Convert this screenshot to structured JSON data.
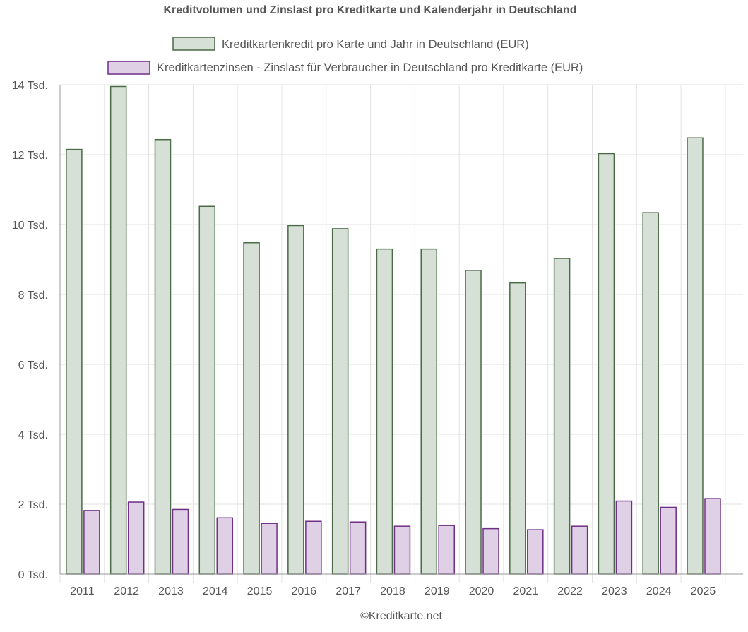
{
  "chart_data": {
    "type": "bar",
    "title": "Kreditvolumen und Zinslast pro Kreditkarte und Kalenderjahr in Deutschland",
    "categories": [
      "2011",
      "2012",
      "2013",
      "2014",
      "2015",
      "2016",
      "2017",
      "2018",
      "2019",
      "2020",
      "2021",
      "2022",
      "2023",
      "2024",
      "2025"
    ],
    "series": [
      {
        "name": "Kreditkartenkredit pro Karte und Jahr in Deutschland (EUR)",
        "fill": "#d6e0d6",
        "stroke": "#4a6b45",
        "values": [
          12150,
          13950,
          12430,
          10520,
          9480,
          9970,
          9880,
          9300,
          9300,
          8690,
          8330,
          9030,
          12030,
          10340,
          12480
        ]
      },
      {
        "name": "Kreditkartenzinsen - Zinslast für Verbraucher in Deutschland pro Kreditkarte (EUR)",
        "fill": "#e0d0e6",
        "stroke": "#6f2f86",
        "values": [
          1820,
          2060,
          1850,
          1610,
          1450,
          1510,
          1490,
          1370,
          1390,
          1300,
          1270,
          1370,
          2090,
          1910,
          2160
        ]
      }
    ],
    "ylim": [
      0,
      14000
    ],
    "yticks": [
      {
        "value": 0,
        "label": "0 Tsd."
      },
      {
        "value": 2000,
        "label": "2 Tsd."
      },
      {
        "value": 4000,
        "label": "4 Tsd."
      },
      {
        "value": 6000,
        "label": "6 Tsd."
      },
      {
        "value": 8000,
        "label": "8 Tsd."
      },
      {
        "value": 10000,
        "label": "10 Tsd."
      },
      {
        "value": 12000,
        "label": "12 Tsd."
      },
      {
        "value": 14000,
        "label": "14 Tsd."
      }
    ],
    "grid": true,
    "legend_position": "top",
    "credit": "©Kreditkarte.net"
  }
}
